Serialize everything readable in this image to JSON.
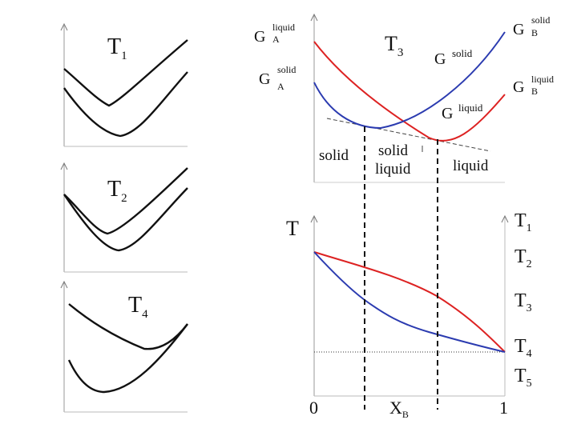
{
  "small_panels": [
    {
      "temperature": "T",
      "subscript": "1"
    },
    {
      "temperature": "T",
      "subscript": "2"
    },
    {
      "temperature": "T",
      "subscript": "4"
    }
  ],
  "gibbs_panel": {
    "temperature": "T",
    "temperature_subscript": "3",
    "g_a_liquid": {
      "main": "G",
      "sup": "liquid",
      "sub": "A"
    },
    "g_a_solid": {
      "main": "G",
      "sup": "solid",
      "sub": "A"
    },
    "g_b_solid": {
      "main": "G",
      "sup": "solid",
      "sub": "B"
    },
    "g_b_liquid": {
      "main": "G",
      "sup": "liquid",
      "sub": "B"
    },
    "g_solid": {
      "main": "G",
      "sup": "solid"
    },
    "g_liquid": {
      "main": "G",
      "sup": "liquid"
    },
    "region_solid": "solid",
    "region_mixed_1": "solid",
    "region_mixed_2": "liquid",
    "region_liquid": "liquid"
  },
  "phase_diagram": {
    "y_axis_label": "T",
    "x_axis_label": {
      "main": "X",
      "sub": "B"
    },
    "x_tick_0": "0",
    "x_tick_1": "1",
    "right_labels": [
      {
        "main": "T",
        "sub": "1"
      },
      {
        "main": "T",
        "sub": "2"
      },
      {
        "main": "T",
        "sub": "3"
      },
      {
        "main": "T",
        "sub": "4"
      },
      {
        "main": "T",
        "sub": "5"
      }
    ]
  },
  "colors": {
    "liquid_curve": "#dd2222",
    "solid_curve": "#2b3bb0",
    "black_curve": "#111111"
  }
}
